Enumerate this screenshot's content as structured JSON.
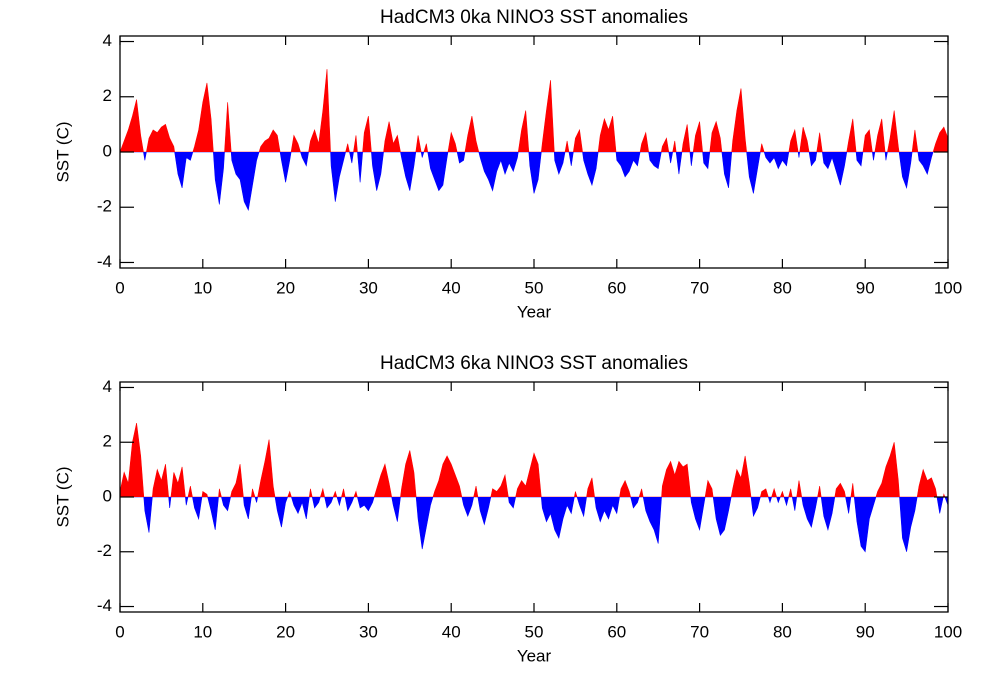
{
  "chart_data": [
    {
      "type": "area",
      "title": "HadCM3 0ka NINO3 SST anomalies",
      "xlabel": "Year",
      "ylabel": "SST (C)",
      "positive_color": "#ff0000",
      "negative_color": "#0000ff",
      "xlim": [
        0,
        100
      ],
      "ylim": [
        -4.2,
        4.2
      ],
      "xticks": [
        0,
        10,
        20,
        30,
        40,
        50,
        60,
        70,
        80,
        90,
        100
      ],
      "yticks": [
        -4,
        -2,
        0,
        2,
        4
      ],
      "x": [
        0,
        0.5,
        1,
        1.5,
        2,
        2.5,
        3,
        3.5,
        4,
        4.5,
        5,
        5.5,
        6,
        6.5,
        7,
        7.5,
        8,
        8.5,
        9,
        9.5,
        10,
        10.5,
        11,
        11.5,
        12,
        12.5,
        13,
        13.5,
        14,
        14.5,
        15,
        15.5,
        16,
        16.5,
        17,
        17.5,
        18,
        18.5,
        19,
        19.5,
        20,
        20.5,
        21,
        21.5,
        22,
        22.5,
        23,
        23.5,
        24,
        24.5,
        25,
        25.5,
        26,
        26.5,
        27,
        27.5,
        28,
        28.5,
        29,
        29.5,
        30,
        30.5,
        31,
        31.5,
        32,
        32.5,
        33,
        33.5,
        34,
        34.5,
        35,
        35.5,
        36,
        36.5,
        37,
        37.5,
        38,
        38.5,
        39,
        39.5,
        40,
        40.5,
        41,
        41.5,
        42,
        42.5,
        43,
        43.5,
        44,
        44.5,
        45,
        45.5,
        46,
        46.5,
        47,
        47.5,
        48,
        48.5,
        49,
        49.5,
        50,
        50.5,
        51,
        51.5,
        52,
        52.5,
        53,
        53.5,
        54,
        54.5,
        55,
        55.5,
        56,
        56.5,
        57,
        57.5,
        58,
        58.5,
        59,
        59.5,
        60,
        60.5,
        61,
        61.5,
        62,
        62.5,
        63,
        63.5,
        64,
        64.5,
        65,
        65.5,
        66,
        66.5,
        67,
        67.5,
        68,
        68.5,
        69,
        69.5,
        70,
        70.5,
        71,
        71.5,
        72,
        72.5,
        73,
        73.5,
        74,
        74.5,
        75,
        75.5,
        76,
        76.5,
        77,
        77.5,
        78,
        78.5,
        79,
        79.5,
        80,
        80.5,
        81,
        81.5,
        82,
        82.5,
        83,
        83.5,
        84,
        84.5,
        85,
        85.5,
        86,
        86.5,
        87,
        87.5,
        88,
        88.5,
        89,
        89.5,
        90,
        90.5,
        91,
        91.5,
        92,
        92.5,
        93,
        93.5,
        94,
        94.5,
        95,
        95.5,
        96,
        96.5,
        97,
        97.5,
        98,
        98.5,
        99,
        99.5,
        100
      ],
      "values": [
        0,
        0.4,
        0.8,
        1.3,
        1.9,
        0.6,
        -0.3,
        0.5,
        0.8,
        0.7,
        0.9,
        1.0,
        0.5,
        0.2,
        -0.8,
        -1.3,
        -0.2,
        -0.3,
        0.2,
        0.8,
        1.8,
        2.5,
        1.2,
        -1.0,
        -1.9,
        -0.6,
        1.8,
        -0.3,
        -0.8,
        -1.0,
        -1.8,
        -2.1,
        -1.2,
        -0.3,
        0.2,
        0.4,
        0.5,
        0.8,
        0.6,
        -0.3,
        -1.1,
        -0.3,
        0.6,
        0.3,
        -0.2,
        -0.5,
        0.4,
        0.8,
        0.3,
        1.5,
        3.0,
        -0.5,
        -1.8,
        -0.9,
        -0.3,
        0.3,
        -0.4,
        0.6,
        -1.1,
        0.7,
        1.3,
        -0.5,
        -1.4,
        -0.8,
        0.4,
        1.1,
        0.3,
        0.6,
        -0.2,
        -0.9,
        -1.4,
        -0.5,
        0.6,
        -0.2,
        0.3,
        -0.6,
        -1.0,
        -1.4,
        -1.2,
        -0.2,
        0.7,
        0.3,
        -0.4,
        -0.3,
        0.6,
        1.3,
        0.4,
        -0.2,
        -0.7,
        -1.0,
        -1.4,
        -0.7,
        -0.3,
        -0.8,
        -0.4,
        -0.7,
        -0.2,
        0.8,
        1.5,
        -0.5,
        -1.5,
        -1.0,
        0.3,
        1.5,
        2.6,
        -0.3,
        -0.8,
        -0.4,
        0.4,
        -0.5,
        0.5,
        0.8,
        -0.3,
        -0.8,
        -1.2,
        -0.6,
        0.6,
        1.2,
        0.8,
        1.3,
        -0.3,
        -0.5,
        -0.9,
        -0.7,
        -0.3,
        -0.5,
        0.3,
        0.7,
        -0.3,
        -0.5,
        -0.6,
        0.2,
        0.5,
        -0.4,
        0.4,
        -0.8,
        0.3,
        1.0,
        -0.5,
        0.6,
        1.1,
        -0.4,
        -0.6,
        0.7,
        1.1,
        0.5,
        -0.8,
        -1.3,
        0.4,
        1.5,
        2.3,
        0.5,
        -0.9,
        -1.5,
        -0.6,
        0.3,
        -0.2,
        -0.4,
        -0.2,
        -0.6,
        -0.3,
        -0.5,
        0.4,
        0.8,
        -0.2,
        0.9,
        0.4,
        -0.5,
        -0.3,
        0.7,
        -0.4,
        -0.6,
        -0.2,
        -0.7,
        -1.2,
        -0.5,
        0.4,
        1.2,
        -0.3,
        -0.5,
        0.6,
        0.8,
        -0.3,
        0.6,
        1.2,
        -0.3,
        0.5,
        1.5,
        0.2,
        -0.9,
        -1.3,
        -0.4,
        0.8,
        -0.3,
        -0.5,
        -0.8,
        -0.2,
        0.3,
        0.7,
        0.9,
        0.5
      ]
    },
    {
      "type": "area",
      "title": "HadCM3 6ka NINO3 SST anomalies",
      "xlabel": "Year",
      "ylabel": "SST (C)",
      "positive_color": "#ff0000",
      "negative_color": "#0000ff",
      "xlim": [
        0,
        100
      ],
      "ylim": [
        -4.2,
        4.2
      ],
      "xticks": [
        0,
        10,
        20,
        30,
        40,
        50,
        60,
        70,
        80,
        90,
        100
      ],
      "yticks": [
        -4,
        -2,
        0,
        2,
        4
      ],
      "x": [
        0,
        0.5,
        1,
        1.5,
        2,
        2.5,
        3,
        3.5,
        4,
        4.5,
        5,
        5.5,
        6,
        6.5,
        7,
        7.5,
        8,
        8.5,
        9,
        9.5,
        10,
        10.5,
        11,
        11.5,
        12,
        12.5,
        13,
        13.5,
        14,
        14.5,
        15,
        15.5,
        16,
        16.5,
        17,
        17.5,
        18,
        18.5,
        19,
        19.5,
        20,
        20.5,
        21,
        21.5,
        22,
        22.5,
        23,
        23.5,
        24,
        24.5,
        25,
        25.5,
        26,
        26.5,
        27,
        27.5,
        28,
        28.5,
        29,
        29.5,
        30,
        30.5,
        31,
        31.5,
        32,
        32.5,
        33,
        33.5,
        34,
        34.5,
        35,
        35.5,
        36,
        36.5,
        37,
        37.5,
        38,
        38.5,
        39,
        39.5,
        40,
        40.5,
        41,
        41.5,
        42,
        42.5,
        43,
        43.5,
        44,
        44.5,
        45,
        45.5,
        46,
        46.5,
        47,
        47.5,
        48,
        48.5,
        49,
        49.5,
        50,
        50.5,
        51,
        51.5,
        52,
        52.5,
        53,
        53.5,
        54,
        54.5,
        55,
        55.5,
        56,
        56.5,
        57,
        57.5,
        58,
        58.5,
        59,
        59.5,
        60,
        60.5,
        61,
        61.5,
        62,
        62.5,
        63,
        63.5,
        64,
        64.5,
        65,
        65.5,
        66,
        66.5,
        67,
        67.5,
        68,
        68.5,
        69,
        69.5,
        70,
        70.5,
        71,
        71.5,
        72,
        72.5,
        73,
        73.5,
        74,
        74.5,
        75,
        75.5,
        76,
        76.5,
        77,
        77.5,
        78,
        78.5,
        79,
        79.5,
        80,
        80.5,
        81,
        81.5,
        82,
        82.5,
        83,
        83.5,
        84,
        84.5,
        85,
        85.5,
        86,
        86.5,
        87,
        87.5,
        88,
        88.5,
        89,
        89.5,
        90,
        90.5,
        91,
        91.5,
        92,
        92.5,
        93,
        93.5,
        94,
        94.5,
        95,
        95.5,
        96,
        96.5,
        97,
        97.5,
        98,
        98.5,
        99,
        99.5,
        100
      ],
      "values": [
        0.2,
        0.9,
        0.5,
        2.0,
        2.7,
        1.5,
        -0.5,
        -1.3,
        0.3,
        1.0,
        0.6,
        1.2,
        -0.4,
        0.9,
        0.5,
        1.1,
        -0.3,
        0.4,
        -0.4,
        -0.8,
        0.2,
        0.1,
        -0.5,
        -1.2,
        0.3,
        -0.3,
        -0.5,
        0.2,
        0.5,
        1.2,
        -0.3,
        -0.8,
        0.3,
        -0.2,
        0.6,
        1.3,
        2.1,
        0.4,
        -0.5,
        -1.1,
        -0.2,
        0.2,
        -0.3,
        -0.6,
        -0.2,
        -0.8,
        0.3,
        -0.4,
        -0.2,
        0.3,
        -0.4,
        -0.2,
        0.2,
        -0.3,
        0.3,
        -0.5,
        -0.2,
        0.2,
        -0.4,
        -0.3,
        -0.5,
        -0.2,
        0.3,
        0.8,
        1.2,
        0.5,
        -0.3,
        -0.9,
        0.3,
        1.2,
        1.7,
        0.9,
        -0.8,
        -1.9,
        -1.1,
        -0.3,
        0.2,
        0.6,
        1.2,
        1.5,
        1.2,
        0.8,
        0.4,
        -0.3,
        -0.7,
        -0.3,
        0.4,
        -0.5,
        -1.0,
        -0.4,
        0.3,
        0.2,
        0.4,
        0.8,
        -0.2,
        -0.4,
        0.3,
        0.6,
        0.4,
        1.0,
        1.6,
        1.2,
        -0.4,
        -0.9,
        -0.6,
        -1.2,
        -1.5,
        -0.8,
        -0.3,
        -0.6,
        0.2,
        -0.3,
        -0.7,
        0.3,
        0.7,
        -0.4,
        -0.9,
        -0.5,
        -0.8,
        -0.3,
        -0.6,
        0.3,
        0.6,
        0.2,
        -0.4,
        -0.2,
        0.3,
        -0.5,
        -0.9,
        -1.2,
        -1.7,
        0.4,
        1.0,
        1.3,
        0.8,
        1.3,
        1.1,
        1.2,
        -0.2,
        -0.8,
        -1.2,
        -0.3,
        0.6,
        0.3,
        -0.8,
        -1.4,
        -1.2,
        -0.5,
        0.3,
        1.0,
        0.7,
        1.5,
        0.5,
        -0.7,
        -0.4,
        0.2,
        0.3,
        -0.2,
        0.3,
        -0.2,
        0.2,
        -0.3,
        0.3,
        -0.5,
        0.6,
        -0.3,
        -0.8,
        -1.1,
        -0.4,
        0.4,
        -0.7,
        -1.2,
        -0.6,
        0.3,
        0.5,
        0.2,
        -0.6,
        0.5,
        -0.9,
        -1.8,
        -2.0,
        -0.8,
        -0.3,
        0.2,
        0.5,
        1.1,
        1.5,
        2.0,
        0.6,
        -1.5,
        -2.0,
        -1.1,
        -0.5,
        0.4,
        1.0,
        0.6,
        0.7,
        0.3,
        -0.6,
        0.1,
        -0.3
      ]
    }
  ]
}
